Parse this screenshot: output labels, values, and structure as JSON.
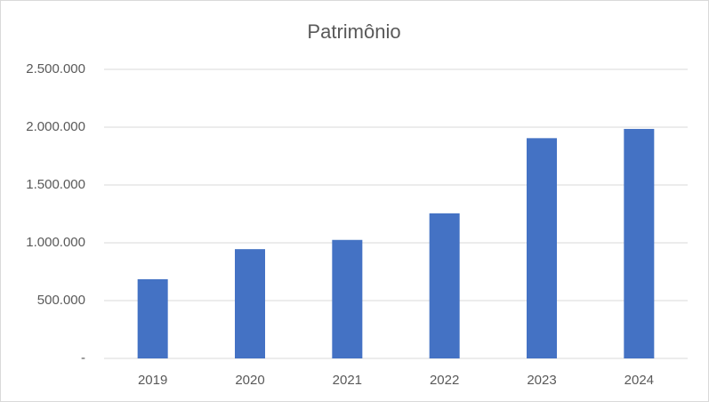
{
  "chart_data": {
    "type": "bar",
    "title": "Patrimônio",
    "categories": [
      "2019",
      "2020",
      "2021",
      "2022",
      "2023",
      "2024"
    ],
    "values": [
      685000,
      945000,
      1025000,
      1255000,
      1905000,
      1985000
    ],
    "color": "#4472c4",
    "ylim": [
      0,
      2500000
    ],
    "yticks": [
      {
        "value": 0,
        "label": "-"
      },
      {
        "value": 500000,
        "label": "500.000"
      },
      {
        "value": 1000000,
        "label": "1.000.000"
      },
      {
        "value": 1500000,
        "label": "1.500.000"
      },
      {
        "value": 2000000,
        "label": "2.000.000"
      },
      {
        "value": 2500000,
        "label": "2.500.000"
      }
    ],
    "grid": true
  }
}
